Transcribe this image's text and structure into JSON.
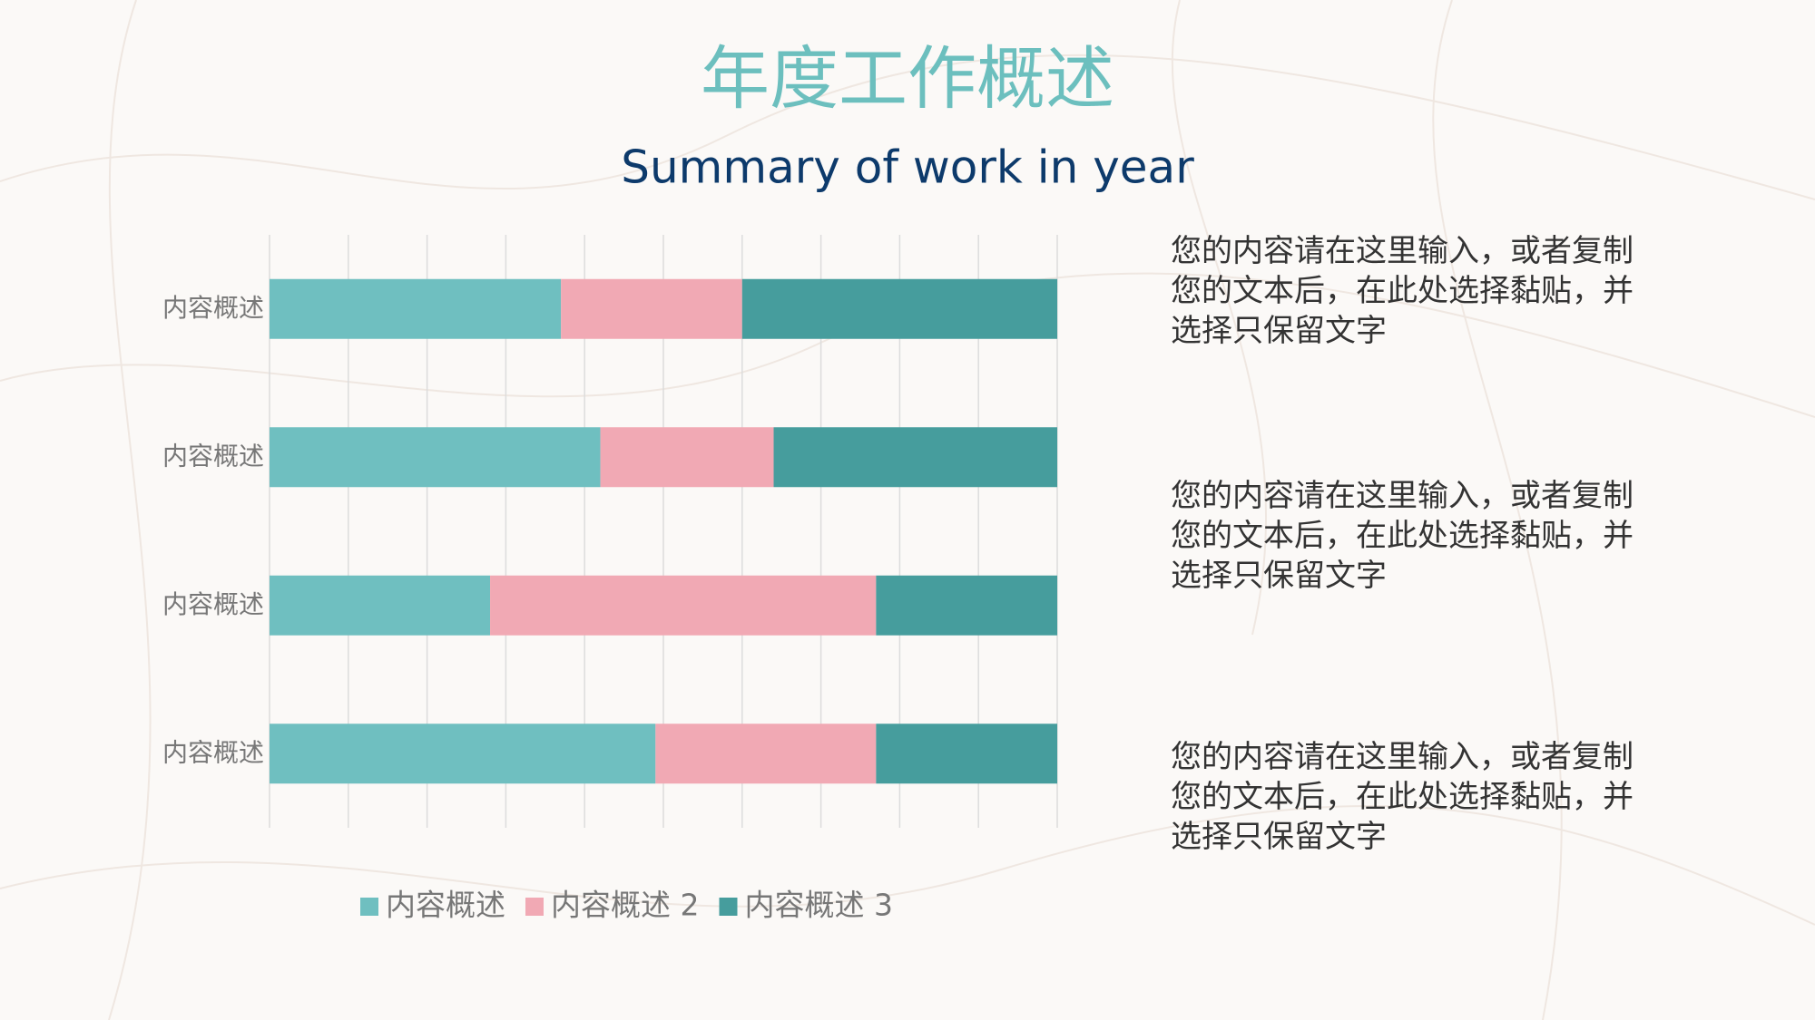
{
  "chart_data": {
    "type": "bar",
    "orientation": "horizontal",
    "stacked": true,
    "title": "年度工作概述",
    "subtitle": "Summary of work in year",
    "categories": [
      "内容概述",
      "内容概述",
      "内容概述",
      "内容概述"
    ],
    "series": [
      {
        "name": "内容概述",
        "color": "#6fbfc0",
        "values": [
          37,
          42,
          28,
          49
        ]
      },
      {
        "name": "内容概述 2",
        "color": "#f1a9b4",
        "values": [
          23,
          22,
          49,
          28
        ]
      },
      {
        "name": "内容概述 3",
        "color": "#469d9d",
        "values": [
          40,
          36,
          23,
          23
        ]
      }
    ],
    "xlim": [
      0,
      100
    ],
    "xticks": [
      0,
      10,
      20,
      30,
      40,
      50,
      60,
      70,
      80,
      90,
      100
    ],
    "grid": true,
    "legend": "bottom"
  },
  "notes": [
    "您的内容请在这里输入，或者复制您的文本后，在此处选择黏贴，并选择只保留文字",
    "您的内容请在这里输入，或者复制您的文本后，在此处选择黏贴，并选择只保留文字",
    "您的内容请在这里输入，或者复制您的文本后，在此处选择黏贴，并选择只保留文字"
  ]
}
